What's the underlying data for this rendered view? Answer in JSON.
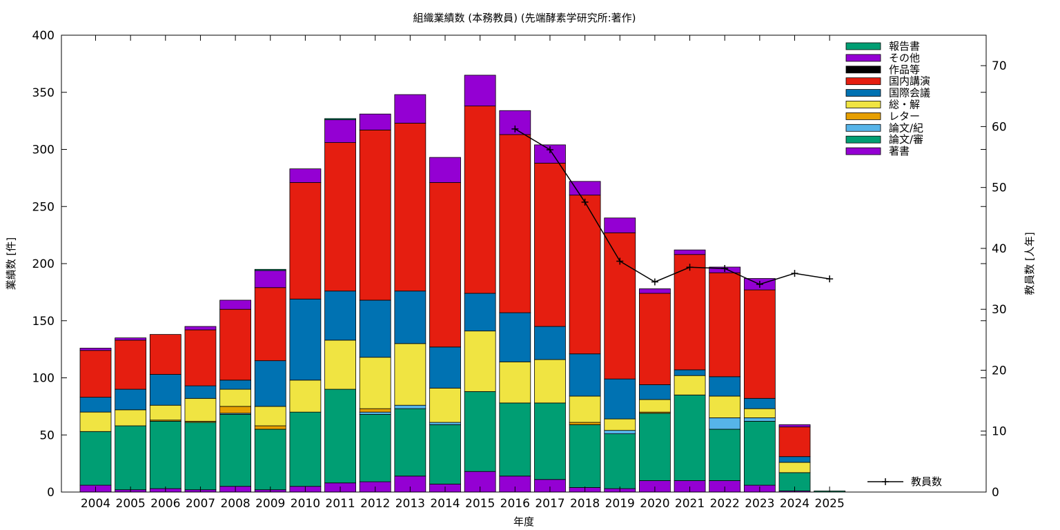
{
  "chart_data": {
    "type": "bar",
    "stacked": true,
    "title": "組織業績数 (本務教員) (先端酵素学研究所:著作)",
    "xlabel": "年度",
    "ylabel": "業績数 [件]",
    "y2label": "教員数 [人年]",
    "ylim": [
      0,
      400
    ],
    "y2lim": [
      0,
      75
    ],
    "yticks": [
      0,
      50,
      100,
      150,
      200,
      250,
      300,
      350,
      400
    ],
    "y2ticks": [
      0,
      10,
      20,
      30,
      40,
      50,
      60,
      70
    ],
    "grid": false,
    "legend_position": "top-right",
    "categories": [
      "2004",
      "2005",
      "2006",
      "2007",
      "2008",
      "2009",
      "2010",
      "2011",
      "2012",
      "2013",
      "2014",
      "2015",
      "2016",
      "2017",
      "2018",
      "2019",
      "2020",
      "2021",
      "2022",
      "2023",
      "2024",
      "2025"
    ],
    "series": [
      {
        "name": "著書",
        "color": "#9400d3",
        "values": [
          6,
          2,
          3,
          2,
          5,
          2,
          5,
          8,
          9,
          14,
          7,
          18,
          14,
          11,
          4,
          3,
          10,
          10,
          10,
          6,
          1,
          0
        ]
      },
      {
        "name": "論文/審",
        "color": "#009e73",
        "values": [
          47,
          56,
          59,
          59,
          63,
          53,
          65,
          82,
          59,
          59,
          52,
          70,
          64,
          67,
          55,
          48,
          59,
          75,
          45,
          56,
          16,
          1
        ]
      },
      {
        "name": "論文/紀",
        "color": "#56b4e9",
        "values": [
          0,
          0,
          0,
          0,
          1,
          0,
          0,
          0,
          2,
          3,
          2,
          0,
          0,
          0,
          0,
          3,
          0,
          0,
          10,
          3,
          0,
          0
        ]
      },
      {
        "name": "レター",
        "color": "#e69f00",
        "values": [
          0,
          0,
          1,
          1,
          6,
          3,
          0,
          0,
          3,
          0,
          0,
          0,
          0,
          0,
          2,
          0,
          1,
          0,
          0,
          0,
          0,
          0
        ]
      },
      {
        "name": "総・解",
        "color": "#f0e442",
        "values": [
          17,
          14,
          13,
          20,
          15,
          17,
          28,
          43,
          45,
          54,
          30,
          53,
          36,
          38,
          23,
          10,
          11,
          17,
          19,
          8,
          9,
          0
        ]
      },
      {
        "name": "国際会議",
        "color": "#0072b2",
        "values": [
          13,
          18,
          27,
          11,
          8,
          40,
          71,
          43,
          50,
          46,
          36,
          33,
          43,
          29,
          37,
          35,
          13,
          5,
          17,
          9,
          5,
          0
        ]
      },
      {
        "name": "国内講演",
        "color": "#e51e10",
        "values": [
          41,
          43,
          35,
          49,
          62,
          64,
          102,
          130,
          149,
          147,
          144,
          164,
          156,
          143,
          139,
          128,
          80,
          101,
          91,
          95,
          26,
          0
        ]
      },
      {
        "name": "作品等",
        "color": "#000000",
        "values": [
          0,
          0,
          0,
          0,
          0,
          0,
          0,
          0,
          0,
          0,
          0,
          0,
          0,
          0,
          0,
          0,
          0,
          0,
          0,
          0,
          0,
          0
        ]
      },
      {
        "name": "その他",
        "color": "#9400d3",
        "values": [
          2,
          2,
          0,
          3,
          8,
          15,
          12,
          20,
          14,
          25,
          22,
          27,
          21,
          16,
          12,
          13,
          4,
          4,
          5,
          10,
          2,
          0
        ]
      },
      {
        "name": "報告書",
        "color": "#009e73",
        "values": [
          0,
          0,
          0,
          0,
          0,
          1,
          0,
          1,
          0,
          0,
          0,
          0,
          0,
          0,
          0,
          0,
          0,
          0,
          0,
          0,
          0,
          0
        ]
      }
    ],
    "line": {
      "name": "教員数",
      "color": "#000000",
      "axis": "y2",
      "x": [
        "2016",
        "2017",
        "2018",
        "2019",
        "2020",
        "2021",
        "2022",
        "2023",
        "2024",
        "2025"
      ],
      "values": [
        59.6,
        56.2,
        47.6,
        37.9,
        34.5,
        36.9,
        36.7,
        34.1,
        35.9,
        35.0
      ]
    }
  }
}
